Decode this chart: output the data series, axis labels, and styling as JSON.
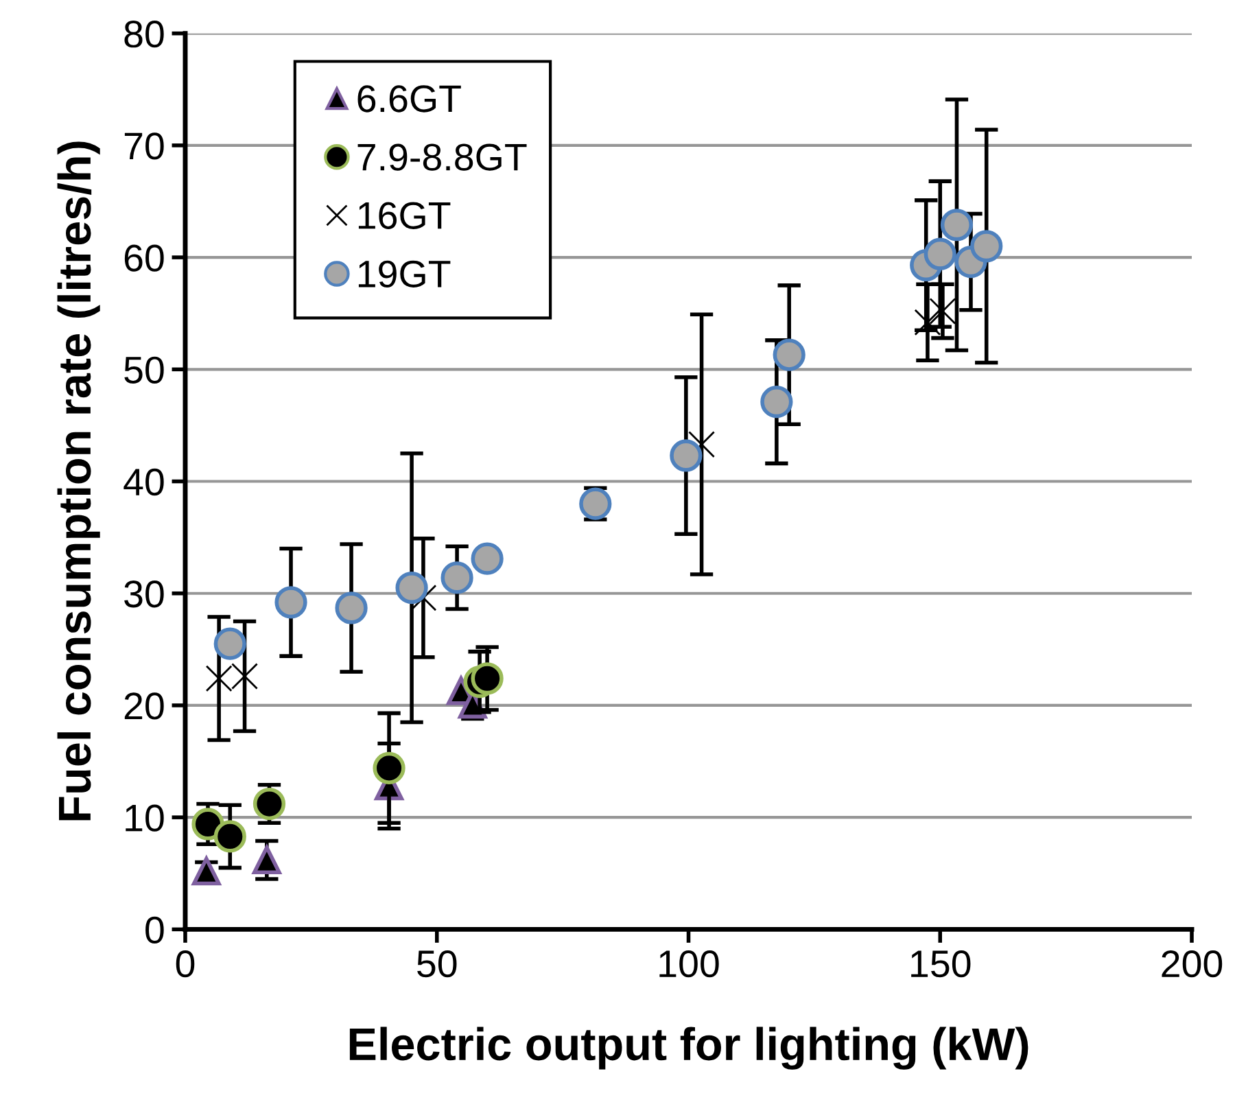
{
  "chart_data": {
    "type": "scatter",
    "xlabel": "Electric output for lighting (kW)",
    "ylabel": "Fuel consumption rate (litres/h)",
    "xlim": [
      0,
      200
    ],
    "xticks": [
      0,
      50,
      100,
      150,
      200
    ],
    "ylim": [
      0,
      80
    ],
    "yticks": [
      0,
      10,
      20,
      30,
      40,
      50,
      60,
      70,
      80
    ],
    "grid": "y",
    "legend": "top left",
    "series": [
      {
        "name": "6.6GT",
        "color": "#000000",
        "marker": "triangle",
        "x": [
          4.2,
          16.2,
          40.5,
          54.8,
          57.1
        ],
        "values": [
          5.2,
          6.2,
          12.8,
          21.3,
          20.1
        ],
        "errors": [
          0.8,
          1.7,
          3.8,
          null,
          1.3
        ]
      },
      {
        "name": "7.9-8.8GT",
        "color": "#000000",
        "marker": "circle",
        "x": [
          4.5,
          8.9,
          16.7,
          40.5,
          58.5,
          60
        ],
        "values": [
          9.4,
          8.3,
          11.2,
          14.4,
          22.1,
          22.4
        ],
        "errors": [
          1.8,
          2.8,
          1.7,
          4.9,
          2.7,
          2.8
        ]
      },
      {
        "name": "16GT",
        "color": "#000000",
        "marker": "cross",
        "x": [
          6.7,
          11.8,
          47.3,
          102.6,
          147.5,
          150.5
        ],
        "values": [
          22.4,
          22.6,
          29.6,
          43.3,
          54.2,
          55.2
        ],
        "errors": [
          5.5,
          4.9,
          5.3,
          11.6,
          3.4,
          2.4
        ]
      },
      {
        "name": "19GT",
        "color": "#a6a6a6",
        "marker": "circle",
        "x": [
          8.9,
          21,
          33,
          45,
          54,
          60,
          81.5,
          99.5,
          117.5,
          120,
          147.2,
          150,
          153.3,
          156.1,
          159.2
        ],
        "values": [
          25.5,
          29.2,
          28.7,
          30.5,
          31.4,
          33.1,
          38.0,
          42.3,
          47.1,
          51.3,
          59.3,
          60.3,
          62.9,
          59.6,
          61.0
        ],
        "errors": [
          null,
          4.8,
          5.7,
          12,
          2.8,
          null,
          1.4,
          7,
          5.5,
          6.2,
          5.8,
          6.5,
          11.2,
          4.3,
          10.4
        ]
      }
    ]
  }
}
